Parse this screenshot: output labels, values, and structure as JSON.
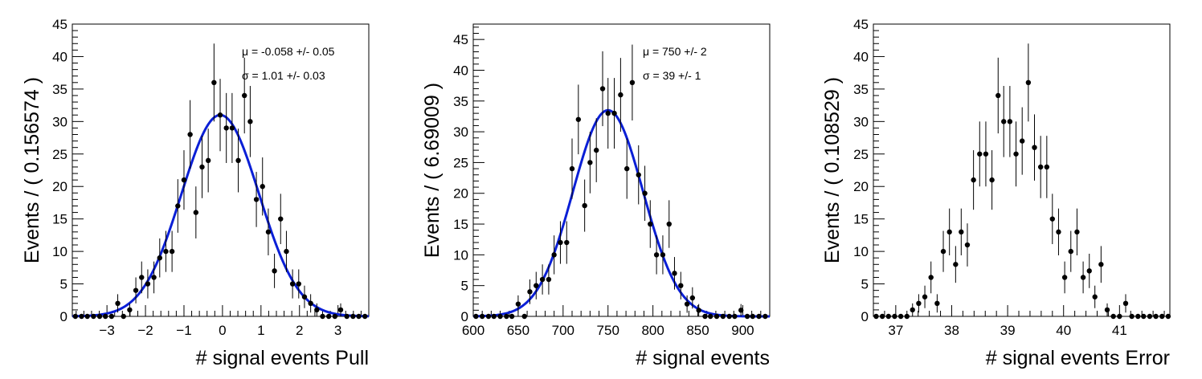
{
  "chart_data": [
    {
      "type": "scatter",
      "xlabel": "# signal events Pull",
      "ylabel": "Events / ( 0.156574 )",
      "xlim": [
        -3.9,
        3.8
      ],
      "ylim": [
        0,
        45
      ],
      "x_ticks": [
        -3,
        -2,
        -1,
        0,
        1,
        2,
        3
      ],
      "x_tick_labels": [
        "−3",
        "−2",
        "−1",
        "0",
        "1",
        "2",
        "3"
      ],
      "y_ticks": [
        0,
        5,
        10,
        15,
        20,
        25,
        30,
        35,
        40,
        45
      ],
      "y_tick_labels": [
        "0",
        "5",
        "10",
        "15",
        "20",
        "25",
        "30",
        "35",
        "40",
        "45"
      ],
      "annotations": [
        "μ = -0.058 +/- 0.05",
        "σ =  1.01 +/- 0.03"
      ],
      "x": [
        -3.82,
        -3.66,
        -3.51,
        -3.35,
        -3.19,
        -3.04,
        -2.88,
        -2.72,
        -2.57,
        -2.41,
        -2.25,
        -2.1,
        -1.94,
        -1.78,
        -1.63,
        -1.47,
        -1.31,
        -1.16,
        -1.0,
        -0.84,
        -0.69,
        -0.53,
        -0.37,
        -0.22,
        -0.06,
        0.1,
        0.25,
        0.41,
        0.57,
        0.72,
        0.88,
        1.04,
        1.19,
        1.35,
        1.51,
        1.66,
        1.82,
        1.98,
        2.13,
        2.29,
        2.45,
        2.6,
        2.76,
        2.92,
        3.07,
        3.23,
        3.39,
        3.54,
        3.7
      ],
      "values": [
        0,
        0,
        0,
        0,
        0,
        0,
        0,
        2,
        0,
        1,
        4,
        6,
        5,
        6,
        9,
        10,
        10,
        17,
        21,
        28,
        16,
        23,
        24,
        36,
        31,
        29,
        29,
        24,
        34,
        30,
        18,
        20,
        13,
        7,
        15,
        10,
        5,
        5,
        3,
        2,
        1,
        0,
        0,
        0,
        1,
        0,
        0,
        0,
        0
      ],
      "fit": {
        "mu": -0.058,
        "sigma": 1.01,
        "amplitude": 31
      }
    },
    {
      "type": "scatter",
      "xlabel": "# signal events",
      "ylabel": "Events / ( 6.69009 )",
      "xlim": [
        600,
        930
      ],
      "ylim": [
        0,
        47.5
      ],
      "x_ticks": [
        600,
        650,
        700,
        750,
        800,
        850,
        900
      ],
      "x_tick_labels": [
        "600",
        "650",
        "700",
        "750",
        "800",
        "850",
        "900"
      ],
      "y_ticks": [
        0,
        5,
        10,
        15,
        20,
        25,
        30,
        35,
        40,
        45
      ],
      "y_tick_labels": [
        "0",
        "5",
        "10",
        "15",
        "20",
        "25",
        "30",
        "35",
        "40",
        "45"
      ],
      "annotations": [
        "μ =  750 +/- 2",
        "σ =  39 +/- 1"
      ],
      "x": [
        603,
        610,
        617,
        623,
        630,
        637,
        643,
        650,
        657,
        663,
        670,
        677,
        684,
        690,
        697,
        704,
        710,
        717,
        724,
        730,
        737,
        744,
        750,
        757,
        764,
        771,
        777,
        784,
        791,
        797,
        804,
        811,
        818,
        824,
        831,
        838,
        844,
        851,
        858,
        864,
        871,
        878,
        885,
        891,
        898,
        905,
        911,
        918,
        925
      ],
      "values": [
        0,
        0,
        0,
        0,
        0,
        0,
        0,
        2,
        0,
        4,
        5,
        6,
        6,
        10,
        12,
        12,
        24,
        32,
        18,
        25,
        27,
        37,
        33,
        33,
        36,
        24,
        38,
        23,
        20,
        15,
        10,
        10,
        15,
        7,
        5,
        2,
        3,
        1,
        0,
        0,
        0,
        0,
        0,
        0,
        1,
        0,
        0,
        0,
        0
      ],
      "fit": {
        "mu": 750,
        "sigma": 39,
        "amplitude": 33.5
      }
    },
    {
      "type": "scatter",
      "xlabel": "# signal events Error",
      "ylabel": "Events / ( 0.108529 )",
      "xlim": [
        36.6,
        41.9
      ],
      "ylim": [
        0,
        45
      ],
      "x_ticks": [
        37,
        38,
        39,
        40,
        41
      ],
      "x_tick_labels": [
        "37",
        "38",
        "39",
        "40",
        "41"
      ],
      "y_ticks": [
        0,
        5,
        10,
        15,
        20,
        25,
        30,
        35,
        40,
        45
      ],
      "y_tick_labels": [
        "0",
        "5",
        "10",
        "15",
        "20",
        "25",
        "30",
        "35",
        "40",
        "45"
      ],
      "annotations": [],
      "x": [
        36.65,
        36.76,
        36.87,
        36.98,
        37.09,
        37.2,
        37.3,
        37.41,
        37.52,
        37.63,
        37.74,
        37.85,
        37.96,
        38.07,
        38.17,
        38.28,
        38.39,
        38.5,
        38.61,
        38.72,
        38.83,
        38.93,
        39.04,
        39.15,
        39.26,
        39.37,
        39.48,
        39.59,
        39.7,
        39.8,
        39.91,
        40.02,
        40.13,
        40.24,
        40.35,
        40.46,
        40.56,
        40.67,
        40.78,
        40.89,
        41.0,
        41.11,
        41.22,
        41.33,
        41.43,
        41.54,
        41.65,
        41.76,
        41.87
      ],
      "values": [
        0,
        0,
        0,
        0,
        0,
        0,
        1,
        2,
        3,
        6,
        2,
        10,
        13,
        8,
        13,
        11,
        21,
        25,
        25,
        21,
        34,
        30,
        30,
        25,
        27,
        36,
        26,
        23,
        23,
        15,
        13,
        6,
        10,
        13,
        6,
        7,
        3,
        8,
        1,
        0,
        0,
        2,
        0,
        0,
        0,
        0,
        0,
        0,
        0
      ]
    }
  ]
}
